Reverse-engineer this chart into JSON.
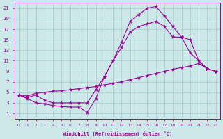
{
  "xlabel": "Windchill (Refroidissement éolien,°C)",
  "bg_color": "#cce8e8",
  "line_color": "#990099",
  "grid_color": "#aacccc",
  "xlim": [
    -0.5,
    23.5
  ],
  "ylim": [
    0,
    22
  ],
  "xticks": [
    0,
    1,
    2,
    3,
    4,
    5,
    6,
    7,
    8,
    9,
    10,
    11,
    12,
    13,
    14,
    15,
    16,
    17,
    18,
    19,
    20,
    21,
    22,
    23
  ],
  "yticks": [
    1,
    3,
    5,
    7,
    9,
    11,
    13,
    15,
    17,
    19,
    21
  ],
  "curve1_x": [
    0,
    1,
    2,
    3,
    4,
    5,
    6,
    7,
    8,
    9,
    10,
    11,
    12,
    13,
    14,
    15,
    16,
    17,
    18,
    19,
    20,
    21,
    22,
    23
  ],
  "curve1_y": [
    4.5,
    3.8,
    3.0,
    2.8,
    2.5,
    2.3,
    2.2,
    2.2,
    1.2,
    3.8,
    8.0,
    11.0,
    14.5,
    18.5,
    19.8,
    21.0,
    21.3,
    19.5,
    17.5,
    15.5,
    12.5,
    11.0,
    9.5,
    9.0
  ],
  "curve2_x": [
    0,
    1,
    2,
    3,
    4,
    5,
    6,
    7,
    8,
    9,
    10,
    11,
    12,
    13,
    14,
    15,
    16,
    17,
    18,
    19,
    20,
    21,
    22,
    23
  ],
  "curve2_y": [
    4.5,
    4.0,
    4.5,
    3.5,
    3.0,
    3.0,
    3.0,
    3.0,
    3.0,
    5.5,
    8.0,
    11.0,
    13.5,
    16.5,
    17.5,
    18.0,
    18.5,
    17.5,
    15.5,
    15.5,
    15.0,
    11.0,
    9.5,
    9.0
  ],
  "curve3_x": [
    0,
    1,
    2,
    3,
    4,
    5,
    6,
    7,
    8,
    9,
    10,
    11,
    12,
    13,
    14,
    15,
    16,
    17,
    18,
    19,
    20,
    21,
    22,
    23
  ],
  "curve3_y": [
    4.5,
    4.3,
    4.8,
    5.0,
    5.2,
    5.3,
    5.5,
    5.7,
    5.9,
    6.1,
    6.4,
    6.7,
    7.0,
    7.4,
    7.8,
    8.2,
    8.6,
    9.0,
    9.4,
    9.7,
    10.0,
    10.5,
    9.5,
    9.0
  ]
}
